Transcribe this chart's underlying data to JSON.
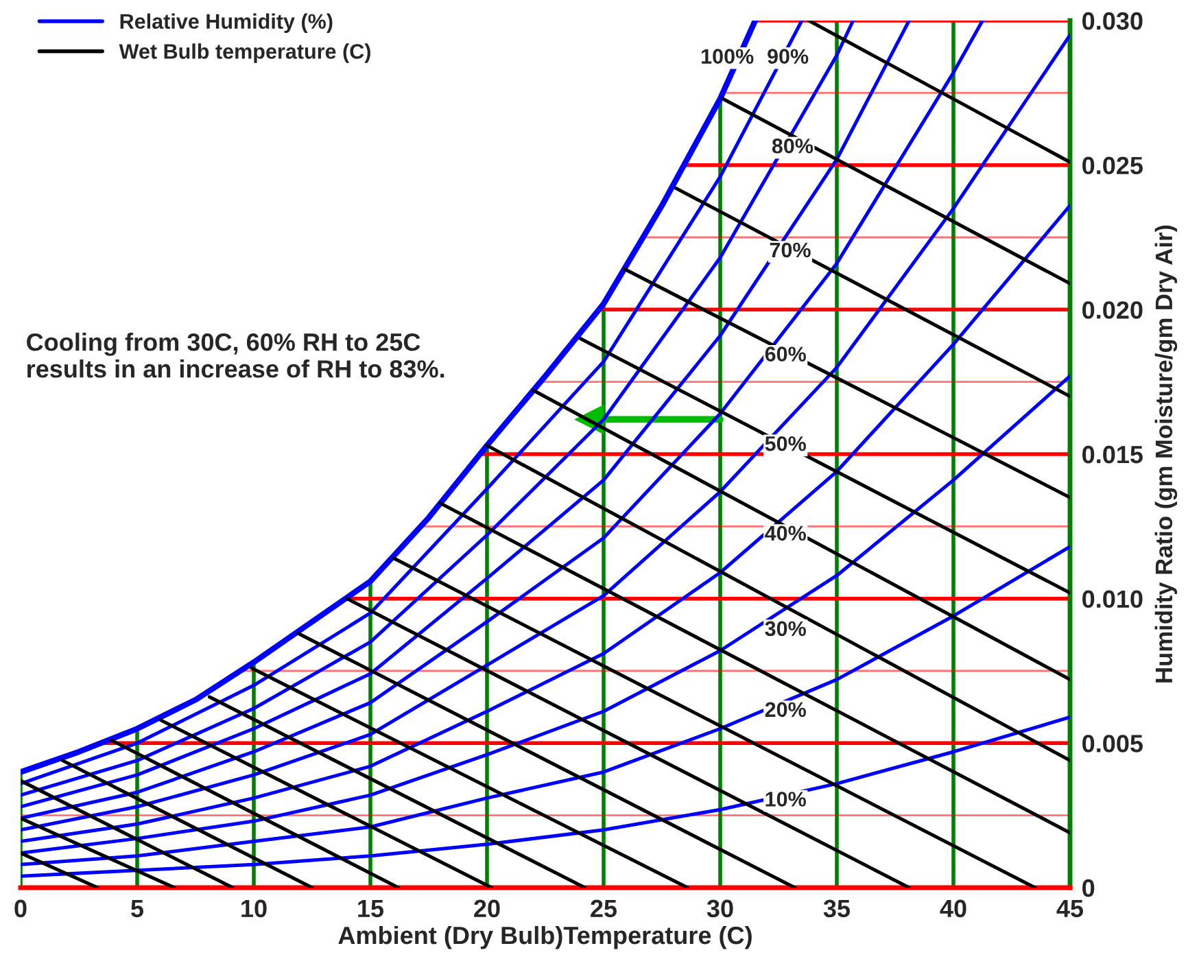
{
  "chart_data": {
    "type": "line",
    "xlabel": "Ambient (Dry Bulb)Temperature (C)",
    "ylabel": "Humidity Ratio (gm Moisture/gm Dry Air)",
    "xlim": [
      0,
      45
    ],
    "xticks": [
      0,
      5,
      10,
      15,
      20,
      25,
      30,
      35,
      40,
      45
    ],
    "ylim": [
      0,
      0.03
    ],
    "yticks": [
      0,
      {
        "value": 0.0025,
        "label": null
      },
      {
        "value": 0.005,
        "label": "0.005"
      },
      {
        "value": 0.0075,
        "label": null
      },
      {
        "value": 0.01,
        "label": "0.010"
      },
      {
        "value": 0.0125,
        "label": null
      },
      {
        "value": 0.015,
        "label": "0.015"
      },
      {
        "value": 0.0175,
        "label": null
      },
      {
        "value": 0.02,
        "label": "0.020"
      },
      {
        "value": 0.0225,
        "label": null
      },
      {
        "value": 0.025,
        "label": "0.025"
      },
      {
        "value": 0.0275,
        "label": null
      },
      {
        "value": 0.03,
        "label": "0.030"
      }
    ],
    "grid": true,
    "legend": "top left",
    "series": [
      {
        "name": "Relative Humidity (%)",
        "color": "#0000ff",
        "x": [
          0,
          2.5,
          5,
          7.5,
          10,
          12.5,
          15,
          17.5,
          20,
          22.5,
          25,
          27.5,
          30,
          31.5
        ],
        "values": [
          0.004,
          0.0047,
          0.0055,
          0.0065,
          0.0078,
          0.0092,
          0.0106,
          0.0128,
          0.0153,
          0.0177,
          0.0202,
          0.0236,
          0.0273,
          0.03
        ]
      },
      {
        "color": "#0000ff",
        "x": [
          0,
          5,
          10,
          15,
          20,
          25,
          30,
          33.5
        ],
        "values": [
          0.0036,
          0.005,
          0.007,
          0.0095,
          0.0138,
          0.0182,
          0.0246,
          0.03
        ]
      },
      {
        "color": "#0000ff",
        "x": [
          0,
          5,
          10,
          15,
          20,
          25,
          30,
          35,
          35.7
        ],
        "values": [
          0.0032,
          0.0044,
          0.0062,
          0.0085,
          0.0122,
          0.0162,
          0.0218,
          0.0288,
          0.03
        ]
      },
      {
        "color": "#0000ff",
        "x": [
          0,
          5,
          10,
          15,
          20,
          25,
          30,
          35,
          38.1
        ],
        "values": [
          0.0028,
          0.0039,
          0.0055,
          0.0074,
          0.0107,
          0.0141,
          0.0191,
          0.0252,
          0.03
        ]
      },
      {
        "color": "#0000ff",
        "x": [
          0,
          5,
          10,
          15,
          20,
          25,
          30,
          35,
          40,
          41.25
        ],
        "values": [
          0.0024,
          0.0033,
          0.0047,
          0.0064,
          0.0092,
          0.0121,
          0.0164,
          0.0216,
          0.0282,
          0.03
        ]
      },
      {
        "color": "#0000ff",
        "x": [
          0,
          5,
          10,
          15,
          20,
          25,
          30,
          35,
          40,
          45
        ],
        "values": [
          0.002,
          0.0028,
          0.0039,
          0.0053,
          0.0077,
          0.0101,
          0.0137,
          0.018,
          0.0235,
          0.0295
        ]
      },
      {
        "color": "#0000ff",
        "x": [
          0,
          5,
          10,
          15,
          20,
          25,
          30,
          35,
          40,
          45
        ],
        "values": [
          0.0016,
          0.0022,
          0.0031,
          0.0042,
          0.0061,
          0.0081,
          0.0109,
          0.0144,
          0.0188,
          0.0236
        ]
      },
      {
        "color": "#0000ff",
        "x": [
          0,
          5,
          10,
          15,
          20,
          25,
          30,
          35,
          40,
          45
        ],
        "values": [
          0.0012,
          0.0017,
          0.0023,
          0.0032,
          0.0046,
          0.0061,
          0.0082,
          0.0108,
          0.0141,
          0.0177
        ]
      },
      {
        "color": "#0000ff",
        "x": [
          0,
          5,
          10,
          15,
          20,
          25,
          30,
          35,
          40,
          45
        ],
        "values": [
          0.0008,
          0.0011,
          0.0016,
          0.0021,
          0.0031,
          0.004,
          0.0055,
          0.0072,
          0.0094,
          0.0118
        ]
      },
      {
        "color": "#0000ff",
        "x": [
          0,
          5,
          10,
          15,
          20,
          25,
          30,
          35,
          40,
          45
        ],
        "values": [
          0.0004,
          0.0006,
          0.0008,
          0.0011,
          0.0015,
          0.002,
          0.0027,
          0.0036,
          0.0047,
          0.0059
        ]
      },
      {
        "name": "Wet Bulb temperature (C)",
        "color": "#000000",
        "x": [
          0,
          3.3
        ],
        "values": [
          0.0012,
          0
        ]
      },
      {
        "color": "#000000",
        "x": [
          0,
          6.6
        ],
        "values": [
          0.0024,
          0
        ]
      },
      {
        "color": "#000000",
        "x": [
          0,
          9.1
        ],
        "values": [
          0.0037,
          0
        ]
      },
      {
        "color": "#000000",
        "x": [
          1.8,
          12.5
        ],
        "values": [
          0.0044,
          0
        ]
      },
      {
        "color": "#000000",
        "x": [
          3.9,
          16.2
        ],
        "values": [
          0.0051,
          0
        ]
      },
      {
        "color": "#000000",
        "x": [
          6.0,
          20.2
        ],
        "values": [
          0.0058,
          0
        ]
      },
      {
        "color": "#000000",
        "x": [
          8.1,
          24.2
        ],
        "values": [
          0.0066,
          0
        ]
      },
      {
        "color": "#000000",
        "x": [
          9.9,
          28.6
        ],
        "values": [
          0.0076,
          0
        ]
      },
      {
        "color": "#000000",
        "x": [
          11.9,
          33.2
        ],
        "values": [
          0.0088,
          0
        ]
      },
      {
        "color": "#000000",
        "x": [
          14.0,
          38.1
        ],
        "values": [
          0.01,
          0
        ]
      },
      {
        "color": "#000000",
        "x": [
          16.0,
          43.5
        ],
        "values": [
          0.0114,
          0
        ]
      },
      {
        "color": "#000000",
        "x": [
          18,
          45
        ],
        "values": [
          0.0133,
          0.0019
        ]
      },
      {
        "color": "#000000",
        "x": [
          20,
          45
        ],
        "values": [
          0.0153,
          0.0044
        ]
      },
      {
        "color": "#000000",
        "x": [
          22,
          45
        ],
        "values": [
          0.0172,
          0.0072
        ]
      },
      {
        "color": "#000000",
        "x": [
          24,
          45
        ],
        "values": [
          0.019,
          0.0102
        ]
      },
      {
        "color": "#000000",
        "x": [
          25.9,
          45
        ],
        "values": [
          0.0214,
          0.0135
        ]
      },
      {
        "color": "#000000",
        "x": [
          28.1,
          45
        ],
        "values": [
          0.0242,
          0.017
        ]
      },
      {
        "color": "#000000",
        "x": [
          30.1,
          45
        ],
        "values": [
          0.0273,
          0.0209
        ]
      },
      {
        "color": "#000000",
        "x": [
          33.8,
          45
        ],
        "values": [
          0.03,
          0.0251
        ]
      },
      {
        "color": "#00bb00",
        "marker": "triangle",
        "x": [
          30,
          24.4
        ],
        "values": [
          0.0162,
          0.0162
        ]
      }
    ],
    "annotations": [
      {
        "text": "100%",
        "x": 30.3,
        "y": 0.0287
      },
      {
        "text": "90%",
        "x": 32.9,
        "y": 0.0287
      },
      {
        "text": "80%",
        "x": 33.1,
        "y": 0.0256
      },
      {
        "text": "70%",
        "x": 33.0,
        "y": 0.022
      },
      {
        "text": "60%",
        "x": 32.8,
        "y": 0.0184
      },
      {
        "text": "50%",
        "x": 32.8,
        "y": 0.0153
      },
      {
        "text": "40%",
        "x": 32.8,
        "y": 0.0122
      },
      {
        "text": "30%",
        "x": 32.8,
        "y": 0.0089
      },
      {
        "text": "20%",
        "x": 32.8,
        "y": 0.0061
      },
      {
        "text": "10%",
        "x": 32.8,
        "y": 0.003
      },
      "Cooling from 30C, 60% RH to 25C\nresults in an increase of RH to 83%."
    ]
  }
}
